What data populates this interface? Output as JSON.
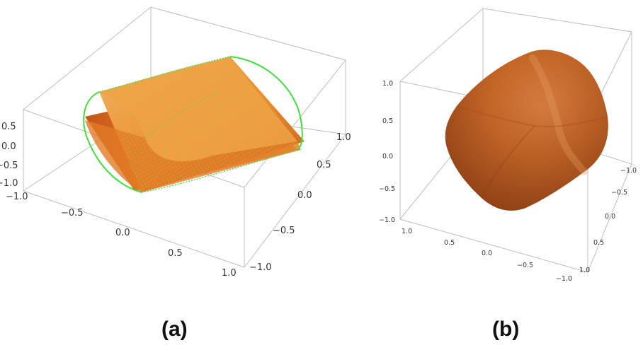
{
  "panels": [
    {
      "caption": "(a)",
      "z_ticks": [
        "0.5",
        "0.0",
        "−0.5",
        "−1.0"
      ],
      "x_ticks": [
        "−1.0",
        "−0.5",
        "0.0",
        "0.5",
        "1.0"
      ],
      "y_ticks": [
        "1.0",
        "0.5",
        "0.0",
        "−0.5",
        "−1.0"
      ]
    },
    {
      "caption": "(b)",
      "z_ticks": [
        "1.0",
        "0.5",
        "0.0",
        "−0.5",
        "−1.0"
      ],
      "x_ticks": [
        "1.0",
        "0.5",
        "0.0",
        "−0.5",
        "−1.0"
      ],
      "y_ticks": [
        "−1.0",
        "−0.5",
        "0.0",
        "0.5",
        "1.0"
      ]
    }
  ],
  "colors": {
    "box": "#bdbdbd",
    "surface_orange": "#f08a2c",
    "surface_dark_orange": "#c4551a",
    "mesh_green": "#3fe03a",
    "solid_brown": "#c0601f",
    "solid_highlight": "#e0884a"
  }
}
